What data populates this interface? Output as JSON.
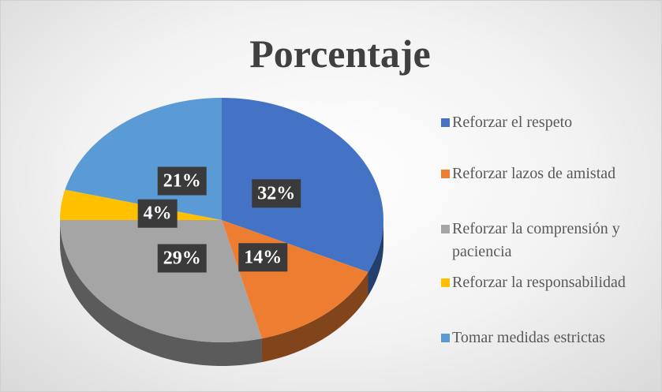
{
  "chart_data": {
    "type": "pie",
    "title": "Porcentaje",
    "categories": [
      "Reforzar el respeto",
      "Reforzar lazos de amistad",
      "Reforzar la comprensión y paciencia",
      "Reforzar la responsabilidad",
      "Tomar medidas estrictas"
    ],
    "values": [
      32,
      14,
      29,
      4,
      21
    ],
    "value_labels": [
      "32%",
      "14%",
      "29%",
      "4%",
      "21%"
    ],
    "colors": [
      "#4472c4",
      "#ed7d31",
      "#a5a5a5",
      "#ffc000",
      "#5b9bd5"
    ],
    "legend": "right"
  }
}
